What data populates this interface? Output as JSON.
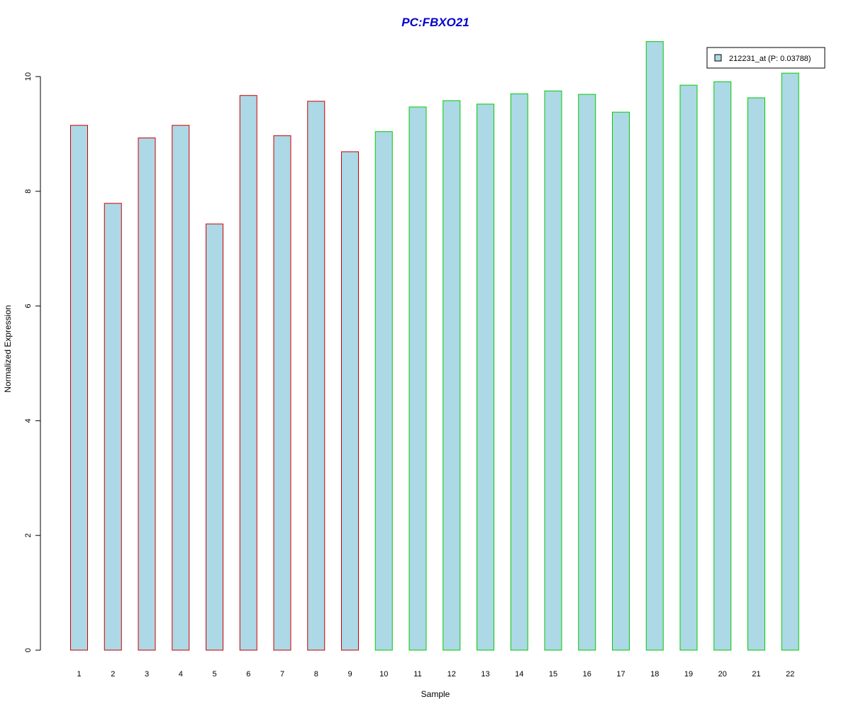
{
  "chart_data": {
    "type": "bar",
    "title": "PC:FBXO21",
    "title_color": "#0000cc",
    "xlabel": "Sample",
    "ylabel": "Normalized Expression",
    "ylim": [
      0,
      10.8
    ],
    "yticks": [
      0,
      2,
      4,
      6,
      8,
      10
    ],
    "grid": false,
    "legend_position": "top-right",
    "bar_fill": "#add8e6",
    "categories": [
      "1",
      "2",
      "3",
      "4",
      "5",
      "6",
      "7",
      "8",
      "9",
      "10",
      "11",
      "12",
      "13",
      "14",
      "15",
      "16",
      "17",
      "18",
      "19",
      "20",
      "21",
      "22"
    ],
    "series": [
      {
        "name": "212231_at (P: 0.03788)",
        "values": [
          9.15,
          7.79,
          8.93,
          9.15,
          7.43,
          9.67,
          8.97,
          9.57,
          8.69,
          9.04,
          9.47,
          9.58,
          9.52,
          9.7,
          9.75,
          9.69,
          9.38,
          10.61,
          9.85,
          9.91,
          9.63,
          10.06
        ]
      }
    ],
    "bar_borders": [
      "#cc0000",
      "#cc0000",
      "#cc0000",
      "#cc0000",
      "#cc0000",
      "#cc0000",
      "#cc0000",
      "#cc0000",
      "#cc0000",
      "#00cc00",
      "#00cc00",
      "#00cc00",
      "#00cc00",
      "#00cc00",
      "#00cc00",
      "#00cc00",
      "#00cc00",
      "#00cc00",
      "#00cc00",
      "#00cc00",
      "#00cc00",
      "#00cc00"
    ]
  }
}
